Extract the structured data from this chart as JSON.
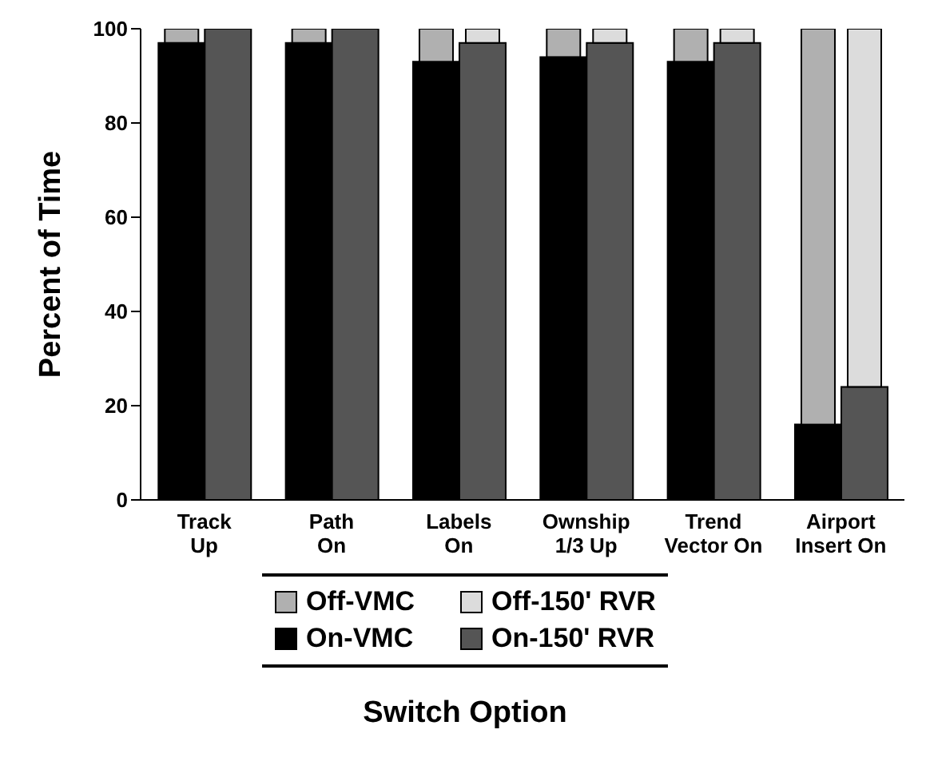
{
  "chart_data": {
    "type": "bar",
    "xlabel": "Switch Option",
    "ylabel": "Percent of Time",
    "categories": [
      "Track Up",
      "Path On",
      "Labels On",
      "Ownship 1/3 Up",
      "Trend Vector On",
      "Airport Insert On"
    ],
    "series": [
      {
        "name": "On-VMC",
        "color": "#000000",
        "values": [
          97,
          97,
          93,
          94,
          93,
          16
        ]
      },
      {
        "name": "Off-VMC",
        "color": "#b0b0b0",
        "values": [
          3,
          3,
          7,
          6,
          7,
          84
        ],
        "base": [
          97,
          97,
          93,
          94,
          93,
          16
        ]
      },
      {
        "name": "On-150' RVR",
        "color": "#555555",
        "values": [
          100,
          100,
          97,
          97,
          97,
          24
        ]
      },
      {
        "name": "Off-150' RVR",
        "color": "#dcdcdc",
        "values": [
          null,
          null,
          3,
          3,
          3,
          76
        ],
        "base": [
          null,
          null,
          97,
          97,
          97,
          24
        ]
      }
    ],
    "ylim": [
      0,
      100
    ],
    "yticks": [
      0,
      20,
      40,
      60,
      80,
      100
    ],
    "grid": false,
    "legend": "bottom"
  }
}
